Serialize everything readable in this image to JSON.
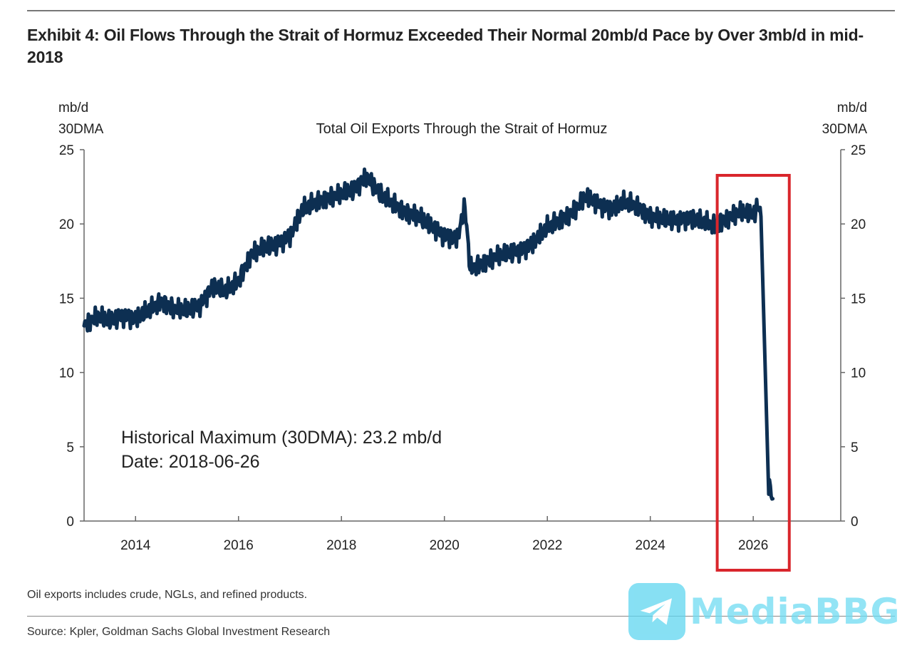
{
  "title": "Exhibit 4: Oil Flows Through the Strait of Hormuz Exceeded Their Normal 20mb/d Pace by Over 3mb/d in mid-2018",
  "footnote": "Oil exports includes crude, NGLs, and refined products.",
  "source": "Source: Kpler, Goldman Sachs Global Investment Research",
  "watermark": {
    "text": "MediaBBG",
    "icon": "telegram-plane-icon",
    "color": "#5fd6f0"
  },
  "chart_data": {
    "type": "line",
    "title": "Total Oil Exports Through the Strait of Hormuz",
    "ylabel_left": [
      "mb/d",
      "30DMA"
    ],
    "ylabel_right": [
      "mb/d",
      "30DMA"
    ],
    "ylim": [
      0,
      25
    ],
    "yticks": [
      0,
      5,
      10,
      15,
      20,
      25
    ],
    "xlim": [
      2013.0,
      2027.7
    ],
    "xticks": [
      2014,
      2016,
      2018,
      2020,
      2022,
      2024,
      2026
    ],
    "grid": false,
    "line_color": "#0d2f52",
    "highlight_color": "#d9262c",
    "highlight_range": [
      2025.3,
      2026.7
    ],
    "annotation": [
      "Historical Maximum (30DMA): 23.2 mb/d",
      "Date: 2018-06-26"
    ],
    "x": [
      2013.0,
      2013.25,
      2013.5,
      2013.75,
      2014.0,
      2014.25,
      2014.5,
      2014.75,
      2015.0,
      2015.25,
      2015.5,
      2015.75,
      2016.0,
      2016.25,
      2016.5,
      2016.75,
      2017.0,
      2017.25,
      2017.5,
      2017.75,
      2018.0,
      2018.25,
      2018.48,
      2018.75,
      2019.0,
      2019.25,
      2019.5,
      2019.75,
      2020.0,
      2020.25,
      2020.4,
      2020.5,
      2020.75,
      2021.0,
      2021.25,
      2021.5,
      2021.75,
      2022.0,
      2022.25,
      2022.5,
      2022.75,
      2023.0,
      2023.25,
      2023.5,
      2023.75,
      2024.0,
      2024.25,
      2024.5,
      2024.75,
      2025.0,
      2025.25,
      2025.5,
      2025.75,
      2026.0,
      2026.1,
      2026.15,
      2026.3,
      2026.38
    ],
    "y": [
      13.2,
      13.8,
      13.5,
      13.8,
      13.6,
      14.2,
      14.8,
      14.3,
      14.2,
      14.5,
      15.8,
      15.5,
      16.2,
      18.0,
      18.4,
      18.6,
      19.2,
      21.0,
      21.5,
      21.8,
      22.0,
      22.3,
      23.2,
      22.0,
      21.4,
      20.8,
      20.5,
      19.8,
      19.2,
      19.0,
      21.2,
      17.0,
      17.4,
      17.8,
      18.0,
      18.2,
      18.8,
      19.8,
      20.3,
      20.8,
      21.8,
      21.3,
      21.0,
      21.5,
      21.2,
      20.5,
      20.3,
      20.2,
      20.4,
      20.2,
      19.9,
      20.4,
      20.8,
      20.6,
      21.3,
      20.5,
      2.5,
      1.5
    ]
  }
}
